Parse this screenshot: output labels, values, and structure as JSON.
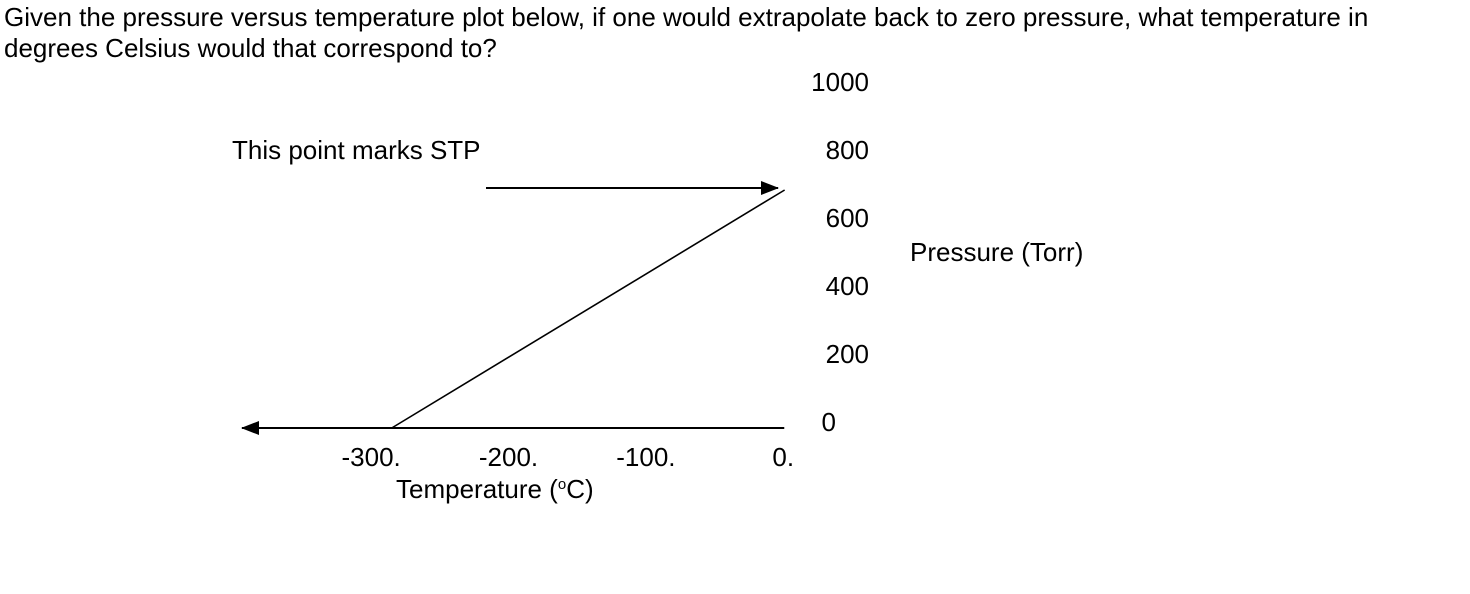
{
  "question": {
    "text": "Given the pressure versus temperature plot below, if one would extrapolate back to zero pressure, what temperature in degrees Celsius would that correspond to?"
  },
  "chart_data": {
    "type": "line",
    "title": "",
    "xlabel": {
      "prefix": "Temperature (",
      "superscript": "o",
      "suffix": "C)"
    },
    "ylabel": "Pressure (Torr)",
    "x_ticks": [
      "-300.",
      "-200.",
      "-100.",
      "0."
    ],
    "x_tick_values": [
      -300,
      -200,
      -100,
      0
    ],
    "y_ticks": [
      "0",
      "200",
      "400",
      "600",
      "800",
      "1000"
    ],
    "y_tick_values": [
      0,
      200,
      400,
      600,
      800,
      1000
    ],
    "xlim": [
      -394,
      10
    ],
    "ylim": [
      0,
      1000
    ],
    "series": [
      {
        "x": [
          -285,
          1
        ],
        "y": [
          0,
          700
        ]
      }
    ],
    "annotation": {
      "text": "This point marks STP",
      "target": {
        "x": 0,
        "y": 700
      }
    },
    "grid": false
  }
}
